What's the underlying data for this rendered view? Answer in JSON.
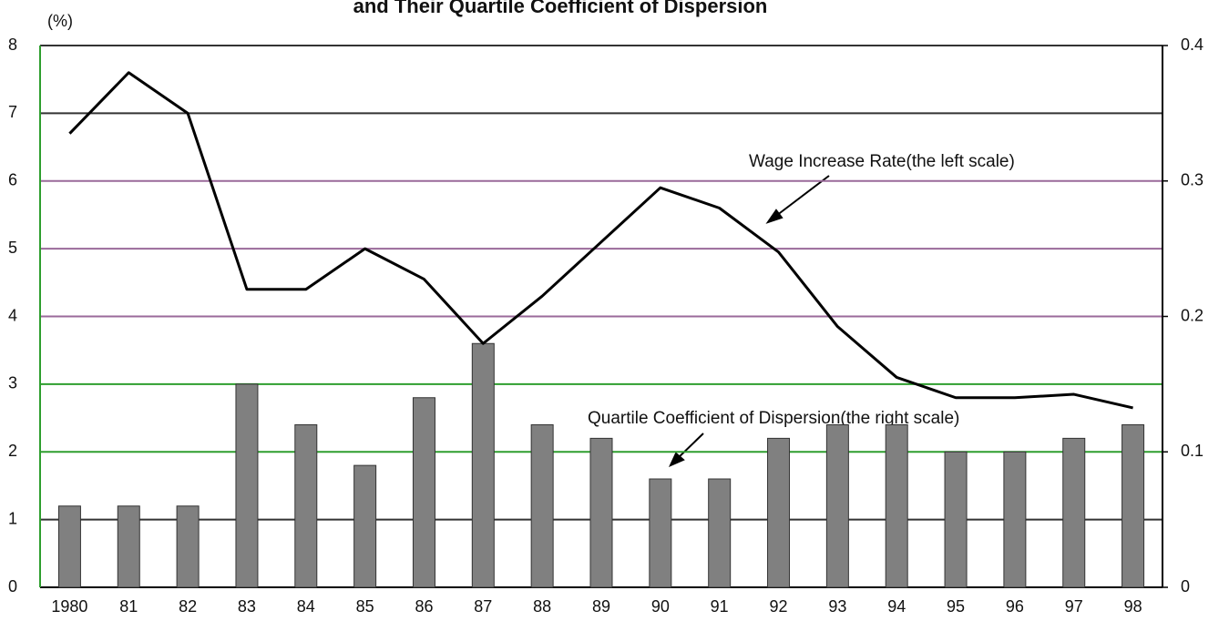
{
  "chart_data": {
    "type": "bar-line",
    "title": "and Their Quartile Coefficient of Dispersion",
    "y_label": "(%)",
    "annotations": [
      "Wage Increase Rate(the left scale)",
      "Quartile Coefficient of Dispersion(the right scale)"
    ],
    "categories": [
      "1980",
      "81",
      "82",
      "83",
      "84",
      "85",
      "86",
      "87",
      "88",
      "89",
      "90",
      "91",
      "92",
      "93",
      "94",
      "95",
      "96",
      "97",
      "98"
    ],
    "series": [
      {
        "name": "Wage Increase Rate",
        "type": "line",
        "axis": "y",
        "color": "#000000",
        "values": [
          6.7,
          7.6,
          7.0,
          4.4,
          4.4,
          5.0,
          4.55,
          3.6,
          4.3,
          5.1,
          5.9,
          5.6,
          4.95,
          3.85,
          3.1,
          2.8,
          2.8,
          2.85,
          2.65
        ]
      },
      {
        "name": "Quartile Coefficient of Dispersion",
        "type": "bar",
        "axis": "y2",
        "color": "#808080",
        "values": [
          0.06,
          0.06,
          0.06,
          0.15,
          0.12,
          0.09,
          0.14,
          0.18,
          0.12,
          0.11,
          0.08,
          0.08,
          0.11,
          0.12,
          0.12,
          0.1,
          0.1,
          0.11,
          0.12
        ]
      }
    ],
    "ylim": [
      0,
      8
    ],
    "yticks": [
      0,
      1,
      2,
      3,
      4,
      5,
      6,
      7,
      8
    ],
    "y2lim": [
      0,
      0.4
    ],
    "y2ticks": [
      0,
      0.1,
      0.2,
      0.3,
      0.4
    ],
    "grid": true,
    "grid_colors": [
      "#000000",
      "#333333",
      "#2e9e2e",
      "#2e9e2e",
      "#9a6a9a",
      "#9a6a9a",
      "#9a6a9a",
      "#333333",
      "#333333"
    ]
  }
}
